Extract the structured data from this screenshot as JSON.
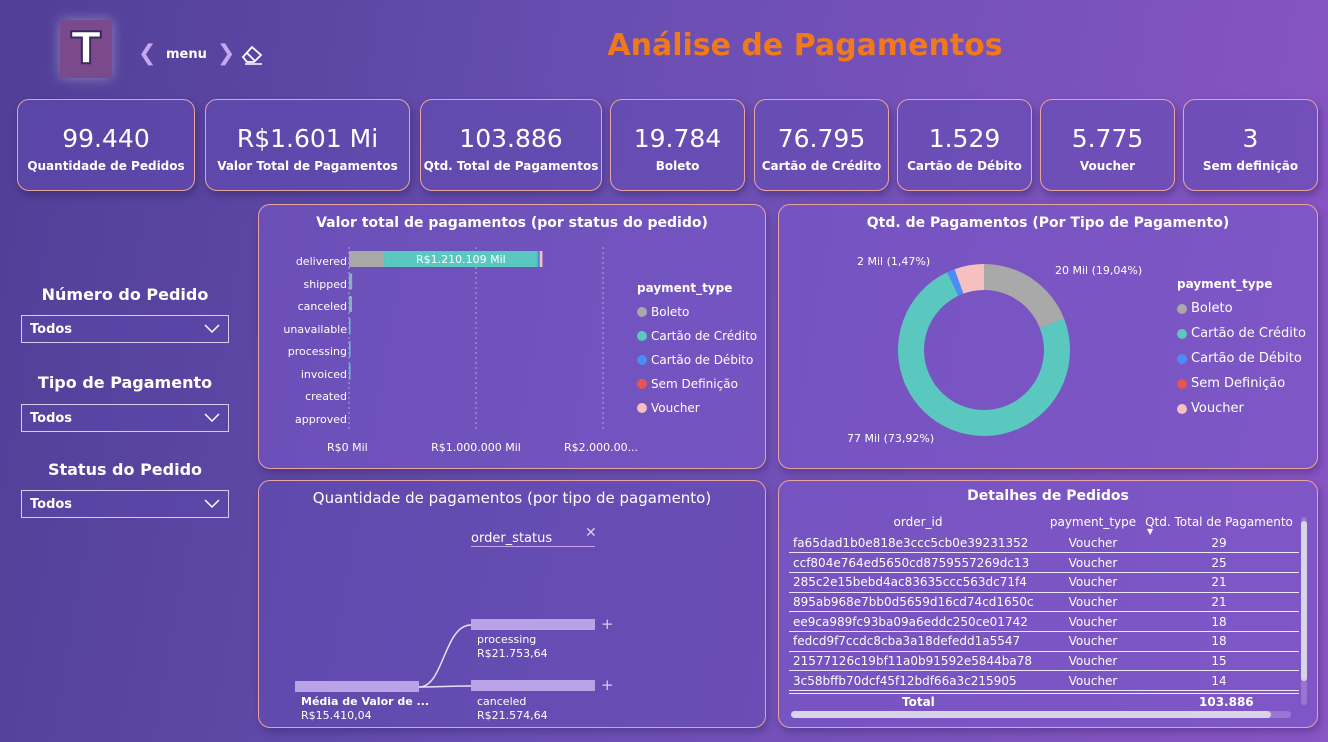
{
  "header": {
    "logo_letter": "T",
    "menu_label": "menu",
    "title": "Análise de Pagamentos"
  },
  "kpis": [
    {
      "value": "99.440",
      "label": "Quantidade de Pedidos"
    },
    {
      "value": "R$1.601 Mi",
      "label": "Valor Total de Pagamentos"
    },
    {
      "value": "103.886",
      "label": "Qtd. Total de Pagamentos"
    },
    {
      "value": "19.784",
      "label": "Boleto"
    },
    {
      "value": "76.795",
      "label": "Cartão de Crédito"
    },
    {
      "value": "1.529",
      "label": "Cartão de Débito"
    },
    {
      "value": "5.775",
      "label": "Voucher"
    },
    {
      "value": "3",
      "label": "Sem definição"
    }
  ],
  "slicers": [
    {
      "title": "Número do Pedido",
      "value": "Todos"
    },
    {
      "title": "Tipo de Pagamento",
      "value": "Todos"
    },
    {
      "title": "Status do Pedido",
      "value": "Todos"
    }
  ],
  "colors": {
    "boleto": "#a9a9a9",
    "cartao_credito": "#5bc8c0",
    "cartao_debito": "#4c8df5",
    "sem_definicao": "#e65454",
    "voucher": "#f7c0c0",
    "accent_title": "#f07a1a"
  },
  "legend": {
    "title": "payment_type",
    "items": [
      "Boleto",
      "Cartão de Crédito",
      "Cartão de Débito",
      "Sem Definição",
      "Voucher"
    ]
  },
  "chart_data": [
    {
      "type": "bar",
      "title": "Valor total de pagamentos (por status do pedido)",
      "orientation": "horizontal-stacked",
      "categories": [
        "delivered",
        "shipped",
        "canceled",
        "unavailable",
        "processing",
        "invoiced",
        "created",
        "approved"
      ],
      "series": [
        {
          "name": "Boleto",
          "values": [
            276000,
            3000,
            1000,
            0,
            0,
            0,
            0,
            0
          ]
        },
        {
          "name": "Cartão de Crédito",
          "values": [
            1210109,
            13000,
            5000,
            5000,
            2000,
            2000,
            0,
            0
          ]
        },
        {
          "name": "Cartão de Débito",
          "values": [
            17000,
            0,
            0,
            0,
            0,
            0,
            0,
            0
          ]
        },
        {
          "name": "Sem Definição",
          "values": [
            0,
            0,
            0,
            0,
            0,
            0,
            0,
            0
          ]
        },
        {
          "name": "Voucher",
          "values": [
            20000,
            0,
            0,
            0,
            0,
            0,
            0,
            0
          ]
        }
      ],
      "data_label": "R$1.210.109 Mil",
      "x_ticks": [
        "R$0 Mil",
        "R$1.000.000 Mil",
        "R$2.000.00..."
      ],
      "xlim": [
        0,
        2000000
      ],
      "legend_position": "right"
    },
    {
      "type": "pie",
      "title": "Qtd. de Pagamentos (Por Tipo de Pagamento)",
      "donut": true,
      "labels": [
        "Boleto",
        "Cartão de Crédito",
        "Cartão de Débito",
        "Sem Definição",
        "Voucher"
      ],
      "values": [
        19784,
        76795,
        1529,
        3,
        5775
      ],
      "data_labels": {
        "boleto": "20 Mil (19,04%)",
        "credito": "77 Mil (73,92%)",
        "debito": "2 Mil (1,47%)"
      },
      "legend_position": "right"
    }
  ],
  "decomposition": {
    "title": "Quantidade de pagamentos (por tipo de pagamento)",
    "field": "order_status",
    "root": {
      "label": "Média de Valor de ...",
      "value": "R$15.410,04"
    },
    "nodes": [
      {
        "label": "processing",
        "value": "R$21.753,64"
      },
      {
        "label": "canceled",
        "value": "R$21.574,64"
      }
    ]
  },
  "details_table": {
    "title": "Detalhes de Pedidos",
    "columns": [
      "order_id",
      "payment_type",
      "Qtd. Total de Pagamento"
    ],
    "rows": [
      [
        "fa65dad1b0e818e3ccc5cb0e39231352",
        "Voucher",
        "29"
      ],
      [
        "ccf804e764ed5650cd8759557269dc13",
        "Voucher",
        "25"
      ],
      [
        "285c2e15bebd4ac83635ccc563dc71f4",
        "Voucher",
        "21"
      ],
      [
        "895ab968e7bb0d5659d16cd74cd1650c",
        "Voucher",
        "21"
      ],
      [
        "ee9ca989fc93ba09a6eddc250ce01742",
        "Voucher",
        "18"
      ],
      [
        "fedcd9f7ccdc8cba3a18defedd1a5547",
        "Voucher",
        "18"
      ],
      [
        "21577126c19bf11a0b91592e5844ba78",
        "Voucher",
        "15"
      ],
      [
        "3c58bffb70dcf45f12bdf66a3c215905",
        "Voucher",
        "14"
      ]
    ],
    "total_label": "Total",
    "total_value": "103.886"
  }
}
